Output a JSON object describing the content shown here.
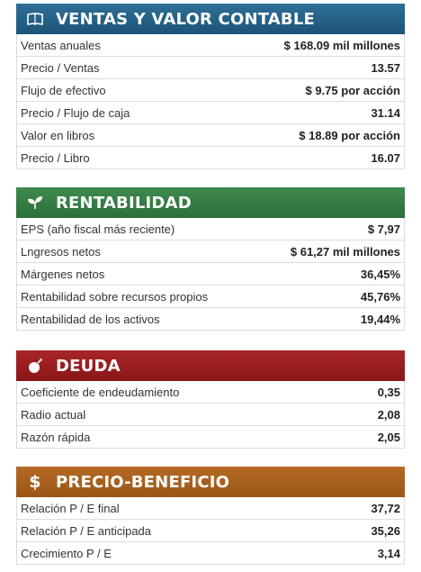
{
  "sections": [
    {
      "title": "VENTAS Y VALOR CONTABLE",
      "icon": "book-icon",
      "color": "#1c5477",
      "rows": [
        {
          "label": "Ventas anuales",
          "value": "$ 168.09 mil millones"
        },
        {
          "label": "Precio / Ventas",
          "value": "13.57"
        },
        {
          "label": "Flujo de efectivo",
          "value": "$ 9.75 por acción"
        },
        {
          "label": "Precio / Flujo de caja",
          "value": "31.14"
        },
        {
          "label": "Valor en libros",
          "value": "$ 18.89 por acción"
        },
        {
          "label": "Precio / Libro",
          "value": "16.07"
        }
      ]
    },
    {
      "title": "RENTABILIDAD",
      "icon": "sprout-icon",
      "color": "#2c6f3a",
      "rows": [
        {
          "label": "EPS (año fiscal más reciente)",
          "value": "$ 7,97"
        },
        {
          "label": "Lngresos netos",
          "value": "$ 61,27 mil millones"
        },
        {
          "label": "Márgenes netos",
          "value": "36,45%"
        },
        {
          "label": "Rentabilidad sobre recursos propios",
          "value": "45,76%"
        },
        {
          "label": "Rentabilidad de los activos",
          "value": "19,44%"
        }
      ]
    },
    {
      "title": "DEUDA",
      "icon": "bomb-icon",
      "color": "#8a1618",
      "rows": [
        {
          "label": "Coeficiente de endeudamiento",
          "value": "0,35"
        },
        {
          "label": "Radio actual",
          "value": "2,08"
        },
        {
          "label": "Razón rápida",
          "value": "2,05"
        }
      ]
    },
    {
      "title": "PRECIO-BENEFICIO",
      "icon": "dollar-icon",
      "color": "#9a5617",
      "rows": [
        {
          "label": "Relación P / E final",
          "value": "37,72"
        },
        {
          "label": "Relación P / E anticipada",
          "value": "35,26"
        },
        {
          "label": "Crecimiento P / E",
          "value": "3,14"
        }
      ]
    }
  ]
}
